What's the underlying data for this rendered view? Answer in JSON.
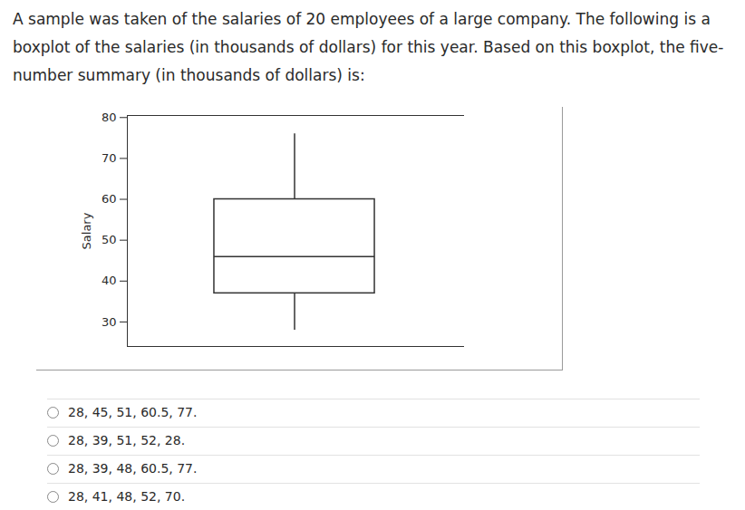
{
  "question": "A sample was taken of the salaries of 20 employees of a large company. The following is a boxplot of the salaries (in thousands of dollars) for this year. Based on this boxplot, the five-number summary (in thousands of dollars) is:",
  "chart_data": {
    "type": "boxplot",
    "ylabel": "Salary",
    "ylim": [
      24,
      80.5
    ],
    "yticks": [
      30,
      40,
      50,
      60,
      70,
      80
    ],
    "tick_labels": "y",
    "min": 28,
    "q1": 37,
    "median": 46,
    "q3": 60,
    "max": 76
  },
  "choices": [
    "28, 45, 51, 60.5, 77.",
    "28, 39, 51, 52, 28.",
    "28, 39, 48, 60.5, 77.",
    "28, 41, 48, 52, 70."
  ]
}
